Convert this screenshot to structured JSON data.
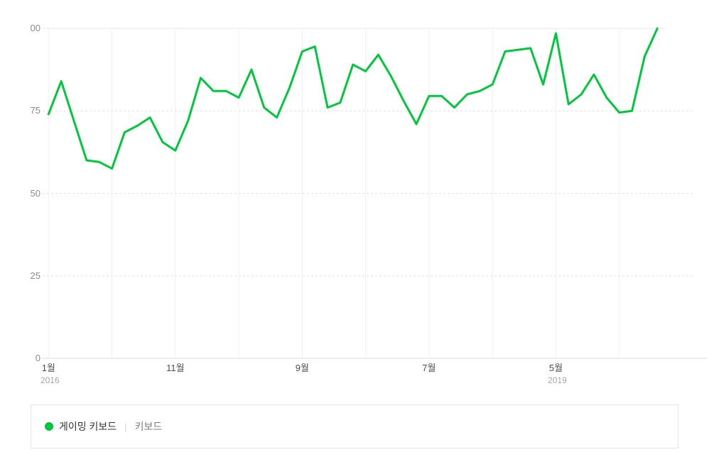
{
  "chart_data": {
    "type": "line",
    "title": "",
    "x_start": "2016-01",
    "x_unit": "month",
    "ylim": [
      0,
      100
    ],
    "grid": "vertical-solid-horizontal-dashed",
    "legend_position": "bottom",
    "y_ticks": [
      {
        "label": "00",
        "value": 100
      },
      {
        "label": "75",
        "value": 75
      },
      {
        "label": "50",
        "value": 50
      },
      {
        "label": "25",
        "value": 25
      },
      {
        "label": "0",
        "value": 0
      }
    ],
    "y_dashed_values": [
      75,
      50,
      25
    ],
    "x_ticks": [
      {
        "label": "1월",
        "year": "2016",
        "month_index": 0
      },
      {
        "label": "11월",
        "year": "",
        "month_index": 10
      },
      {
        "label": "9월",
        "year": "",
        "month_index": 20
      },
      {
        "label": "7월",
        "year": "",
        "month_index": 30
      },
      {
        "label": "5월",
        "year": "2019",
        "month_index": 40
      }
    ],
    "gridline_month_step": 5,
    "gridline_count": 10,
    "series": [
      {
        "name": "게이밍 키보드",
        "color": "#00c73c",
        "values": [
          74,
          84,
          72,
          60,
          59.5,
          57.5,
          68.5,
          70.5,
          73,
          65.5,
          63,
          72,
          85,
          81,
          81,
          79,
          87.5,
          76,
          73,
          82,
          93,
          94.5,
          76,
          77.5,
          89,
          87,
          92,
          85.5,
          78,
          71,
          79.5,
          79.5,
          76,
          80,
          81,
          83,
          93,
          93.5,
          94,
          83,
          98.5,
          77,
          80,
          86,
          79,
          74.5,
          75,
          91.5,
          100
        ]
      }
    ]
  },
  "legend": {
    "items": [
      {
        "label": "게이밍 키보드",
        "color": "#00c73c",
        "active": true
      },
      {
        "label": "키보드",
        "active": false
      }
    ],
    "separator": "|"
  },
  "colors": {
    "line": "#00c73c",
    "v_grid": "#f0f0f0",
    "h_dash": "#e1e1e1",
    "top_border": "#e8e8e8",
    "bottom_border": "#d9d9d9",
    "y_label": "#8a8a8a",
    "x_label": "#4f4f4f",
    "year_label": "#a6a6a6"
  }
}
